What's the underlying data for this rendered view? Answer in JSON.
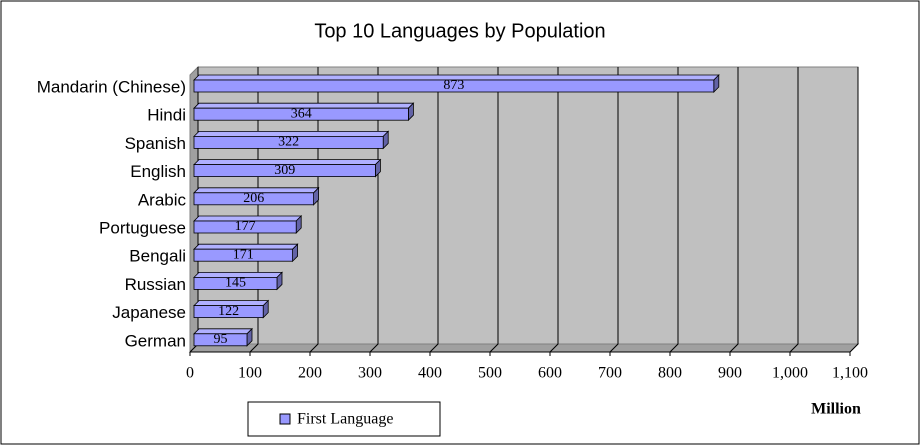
{
  "chart_data": {
    "type": "bar",
    "orientation": "horizontal",
    "title": "Top 10 Languages by Population",
    "categories": [
      "Mandarin (Chinese)",
      "Hindi",
      "Spanish",
      "English",
      "Arabic",
      "Portuguese",
      "Bengali",
      "Russian",
      "Japanese",
      "German"
    ],
    "series": [
      {
        "name": "First Language",
        "color": "#9999ff",
        "values": [
          873,
          364,
          322,
          309,
          206,
          177,
          171,
          145,
          122,
          95
        ]
      }
    ],
    "xlim": [
      0,
      1100
    ],
    "xticks": [
      0,
      100,
      200,
      300,
      400,
      500,
      600,
      700,
      800,
      900,
      {
        "value": 1000,
        "label": "1,000"
      },
      {
        "value": 1100,
        "label": "1,100"
      }
    ],
    "xlabel": "Million",
    "grid": true,
    "legend": "bottom"
  }
}
